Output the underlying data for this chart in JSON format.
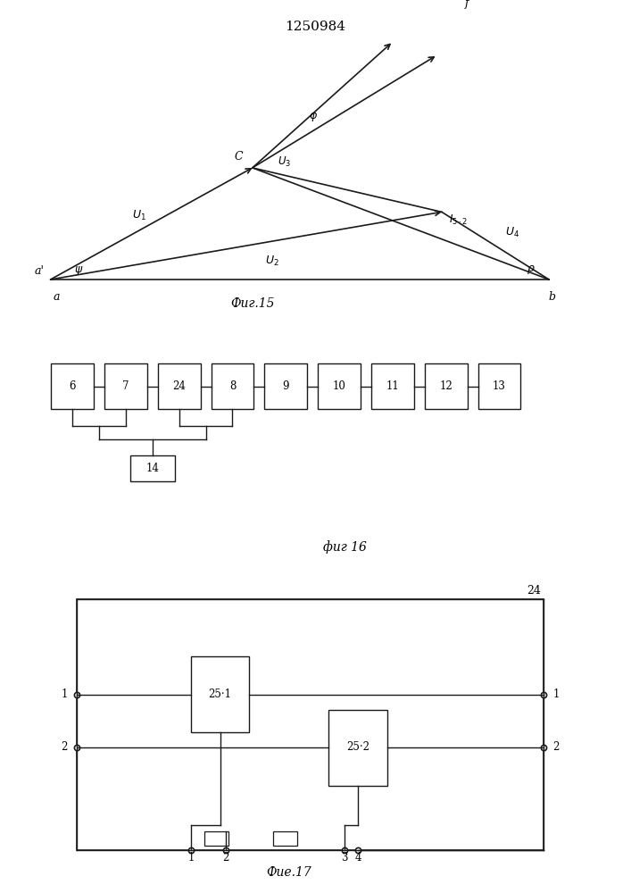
{
  "title": "1250984",
  "fig15_caption": "Фиг.15",
  "fig16_caption": "фиг 16",
  "fig17_caption": "Фие.17",
  "bg_color": "#ffffff",
  "lc": "#1a1a1a",
  "fig16_boxes": [
    "6",
    "7",
    "24",
    "8",
    "9",
    "10",
    "11",
    "12",
    "13"
  ]
}
